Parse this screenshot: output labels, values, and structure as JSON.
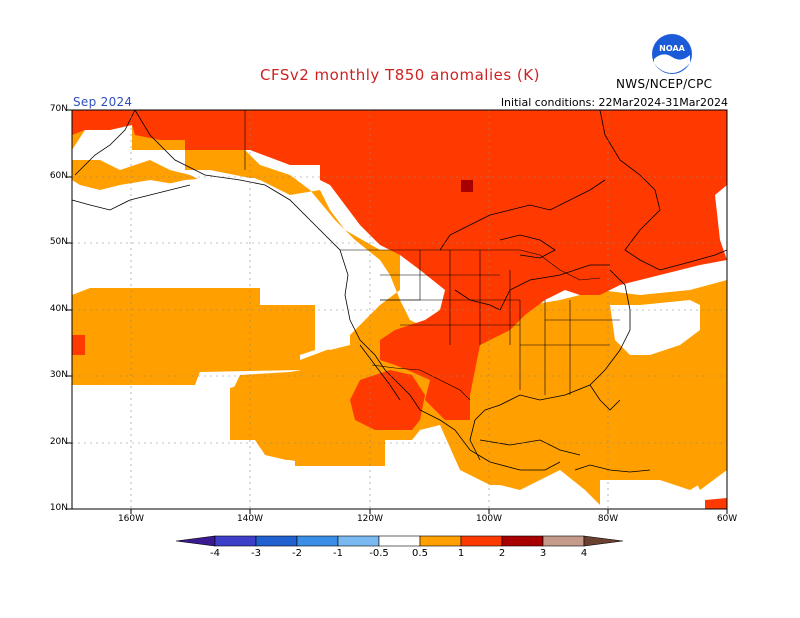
{
  "header": {
    "title": "CFSv2 monthly T850 anomalies (K)",
    "month": "Sep 2024",
    "initial_conditions": "Initial conditions: 22Mar2024-31Mar2024",
    "agency": "NWS/NCEP/CPC",
    "logo_text": "NOAA"
  },
  "colors": {
    "title": "#cc2222",
    "month": "#2f4fbf",
    "below_4": "#3a1b8f",
    "n4_n3": "#3e3fc8",
    "n3_n2": "#2060d0",
    "n2_n1": "#3a8ee6",
    "n1_n05": "#7ab8f0",
    "neutral": "#ffffff",
    "p05_1": "#ff9f00",
    "p1_2": "#ff3a00",
    "p2_3": "#a80000",
    "p3_4": "#c49a8a",
    "above_4": "#6a4030"
  },
  "axes": {
    "lat_labels": [
      "70N",
      "60N",
      "50N",
      "40N",
      "30N",
      "20N",
      "10N"
    ],
    "lon_labels": [
      "160W",
      "140W",
      "120W",
      "100W",
      "80W",
      "60W"
    ]
  },
  "colorbar": {
    "labels": [
      "-4",
      "-3",
      "-2",
      "-1",
      "-0.5",
      "0.5",
      "1",
      "2",
      "3",
      "4"
    ]
  },
  "map_regions": [
    {
      "category": "p1_2",
      "area": "Canada, Alaska panhandle, Great Plains, northern Mexico"
    },
    {
      "category": "p05_1",
      "area": "eastern Pacific, Gulf of Mexico, eastern US, Caribbean, western Atlantic"
    },
    {
      "category": "p2_3",
      "area": "small patch in central Canada"
    },
    {
      "category": "neutral",
      "area": "northeast Pacific, west coast, southeast US coast, equatorial Pacific"
    }
  ]
}
